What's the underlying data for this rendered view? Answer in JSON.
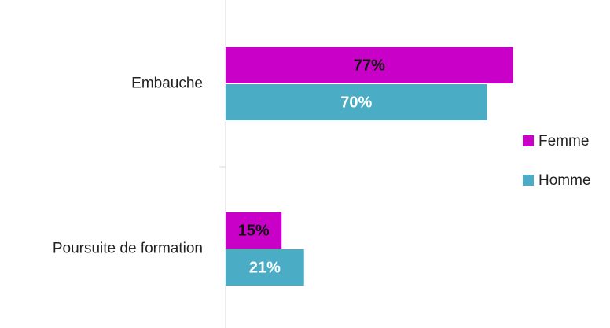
{
  "chart_data": {
    "type": "hbar",
    "categories": [
      "Embauche",
      "Poursuite de formation"
    ],
    "series": [
      {
        "name": "Femme",
        "color": "#c800c8",
        "label_color": "#111111",
        "values": [
          77,
          15
        ],
        "value_labels": [
          "77%",
          "15%"
        ]
      },
      {
        "name": "Homme",
        "color": "#4bacc6",
        "label_color": "#ffffff",
        "values": [
          70,
          21
        ],
        "value_labels": [
          "70%",
          "21%"
        ]
      }
    ]
  }
}
